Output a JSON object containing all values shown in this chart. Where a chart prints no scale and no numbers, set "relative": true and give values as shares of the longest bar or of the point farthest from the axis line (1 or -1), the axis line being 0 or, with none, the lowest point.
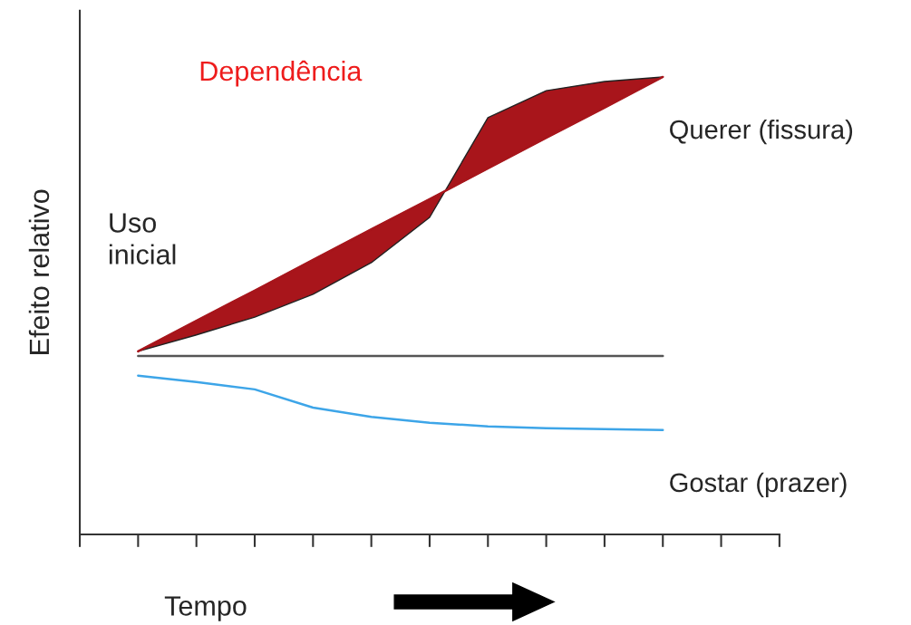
{
  "chart_data": {
    "type": "line",
    "relative": true,
    "xlabel": "Tempo",
    "ylabel": "Efeito relativo",
    "categories": [
      null,
      null,
      null,
      null,
      null,
      null,
      null,
      null,
      null,
      null,
      null,
      null,
      null
    ],
    "series": [
      {
        "name": "Querer (fissura)",
        "color": "#a8151b",
        "values": [
          null,
          0.4,
          0.467,
          0.533,
          0.6,
          0.667,
          0.733,
          0.8,
          0.867,
          0.933,
          1.0,
          null,
          null
        ],
        "lower": [
          null,
          0.4,
          0.436,
          0.475,
          0.525,
          0.594,
          0.693,
          0.911,
          0.97,
          0.99,
          1.0,
          null,
          null
        ],
        "upper": [
          null,
          0.4,
          0.467,
          0.533,
          0.6,
          0.667,
          0.733,
          0.8,
          0.867,
          0.933,
          1.0,
          null,
          null
        ]
      },
      {
        "color": "#555555",
        "values": [
          null,
          0.39,
          0.39,
          0.39,
          0.39,
          0.39,
          0.39,
          0.39,
          0.39,
          0.39,
          0.39,
          null,
          null
        ]
      },
      {
        "name": "Gostar (prazer)",
        "color": "#3da5e8",
        "values": [
          null,
          0.347,
          0.333,
          0.317,
          0.277,
          0.257,
          0.244,
          0.236,
          0.232,
          0.23,
          0.228,
          null,
          null
        ]
      }
    ],
    "annotations": [
      "Uso inicial",
      "Dependência"
    ],
    "legend": false,
    "grid": false,
    "marker": "none",
    "line_style": "solid"
  }
}
